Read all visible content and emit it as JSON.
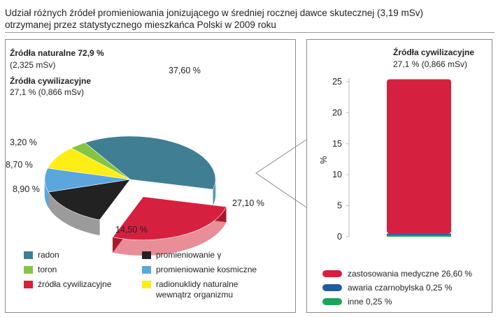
{
  "title_line1": "Udział różnych źródeł promieniowania jonizującego w średniej rocznej dawce skutecznej (3,19 mSv)",
  "title_line2": "otrzymanej przez statystycznego mieszkańca Polski w 2009 roku",
  "left": {
    "natural_title": "Źródła naturalne 72,9 %",
    "natural_sub": "(2,325 mSv)",
    "civil_title": "Źródła cywilizacyjne",
    "civil_sub": "27,1 % (0,866 mSv)"
  },
  "right": {
    "header_title": "Źródła cywilizacyjne",
    "header_sub": "27,1 % (0,866 mSv)"
  },
  "colors": {
    "radon": "#3f7e93",
    "radon_side": "#5499ad",
    "toron": "#86c441",
    "civil": "#d6203f",
    "civil_side": "#e98e98",
    "gamma": "#222222",
    "gamma_side": "#9b9b9b",
    "cosmic": "#5aa6dd",
    "radionuclides": "#ffee13",
    "medical": "#d6203f",
    "chernobyl": "#1f5aa5",
    "other": "#1aa55a"
  },
  "chart_data": [
    {
      "type": "pie",
      "title": "",
      "slices": [
        {
          "name": "radon",
          "value": 37.6,
          "label": "37,60 %"
        },
        {
          "name": "źródła cywilizacyjne",
          "value": 27.1,
          "label": "27,10 %"
        },
        {
          "name": "promieniowanie γ",
          "value": 14.5,
          "label": "14,50 %"
        },
        {
          "name": "promieniowanie kosmiczne",
          "value": 8.9,
          "label": "8,90 %"
        },
        {
          "name": "radionuklidy naturalne wewnątrz organizmu",
          "value": 8.7,
          "label": "8,70 %"
        },
        {
          "name": "toron",
          "value": 3.2,
          "label": "3,20 %"
        }
      ],
      "legend": [
        {
          "key": "radon",
          "text": "radon"
        },
        {
          "key": "gamma",
          "text": "promieniowanie γ"
        },
        {
          "key": "toron",
          "text": "toron"
        },
        {
          "key": "cosmic",
          "text": "promieniowanie kosmiczne"
        },
        {
          "key": "civil",
          "text": "źródła cywilizacyjne"
        },
        {
          "key": "radionuclides",
          "text": "radionuklidy naturalne",
          "text2": "wewnątrz organizmu"
        }
      ]
    },
    {
      "type": "bar",
      "stacked": true,
      "ylabel": "%",
      "ylim": [
        0,
        25
      ],
      "yticks": [
        0,
        5,
        10,
        15,
        20,
        25
      ],
      "series": [
        {
          "name": "inne",
          "value": 0.25,
          "color_key": "other"
        },
        {
          "name": "awaria czarnobylska",
          "value": 0.25,
          "color_key": "chernobyl"
        },
        {
          "name": "zastosowania medyczne",
          "value": 26.6,
          "color_key": "medical"
        }
      ],
      "legend": [
        {
          "key": "medical",
          "text": "zastosowania medyczne 26,60 %"
        },
        {
          "key": "chernobyl",
          "text": "awaria czarnobylska 0,25 %"
        },
        {
          "key": "other",
          "text": "inne 0,25 %"
        }
      ]
    }
  ]
}
